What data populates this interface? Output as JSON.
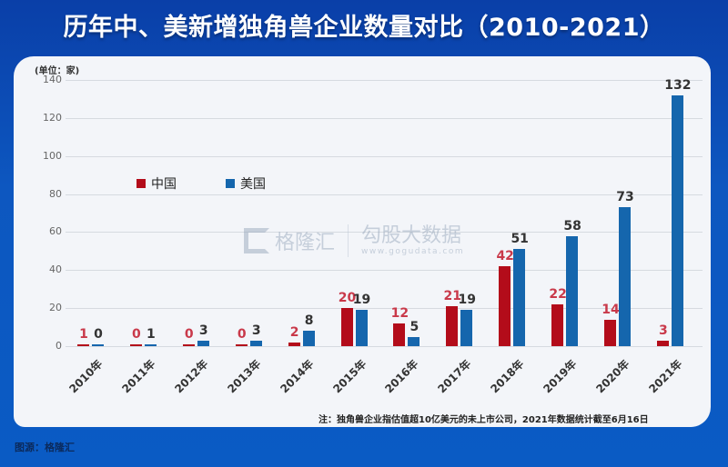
{
  "header": {
    "title": "历年中、美新增独角兽企业数量对比（2010-2021）"
  },
  "axis": {
    "unit": "(单位：家)",
    "yticks": [
      "140",
      "120",
      "100",
      "80",
      "60",
      "40",
      "20",
      "0"
    ]
  },
  "legend": {
    "china": "中国",
    "usa": "美国",
    "china_color": "#b30c1a",
    "usa_color": "#1566ad"
  },
  "watermark": {
    "brand": "格隆汇",
    "brand2": "勾股大数据",
    "url": "www.gogudata.com"
  },
  "footer": {
    "note": "注：独角兽企业指估值超10亿美元的未上市公司，2021年数据统计截至6月16日",
    "source": "图源：格隆汇"
  },
  "chart_data": {
    "type": "bar",
    "title": "历年中、美新增独角兽企业数量对比（2010-2021）",
    "xlabel": "",
    "ylabel": "(单位：家)",
    "ylim": [
      0,
      140
    ],
    "grid": true,
    "legend_position": "upper-left",
    "categories": [
      "2010年",
      "2011年",
      "2012年",
      "2013年",
      "2014年",
      "2015年",
      "2016年",
      "2017年",
      "2018年",
      "2019年",
      "2020年",
      "2021年"
    ],
    "series": [
      {
        "name": "中国",
        "values": [
          1,
          0,
          0,
          0,
          2,
          20,
          12,
          21,
          42,
          22,
          14,
          3
        ]
      },
      {
        "name": "美国",
        "values": [
          0,
          1,
          3,
          3,
          8,
          19,
          5,
          19,
          51,
          58,
          73,
          132
        ]
      }
    ]
  }
}
